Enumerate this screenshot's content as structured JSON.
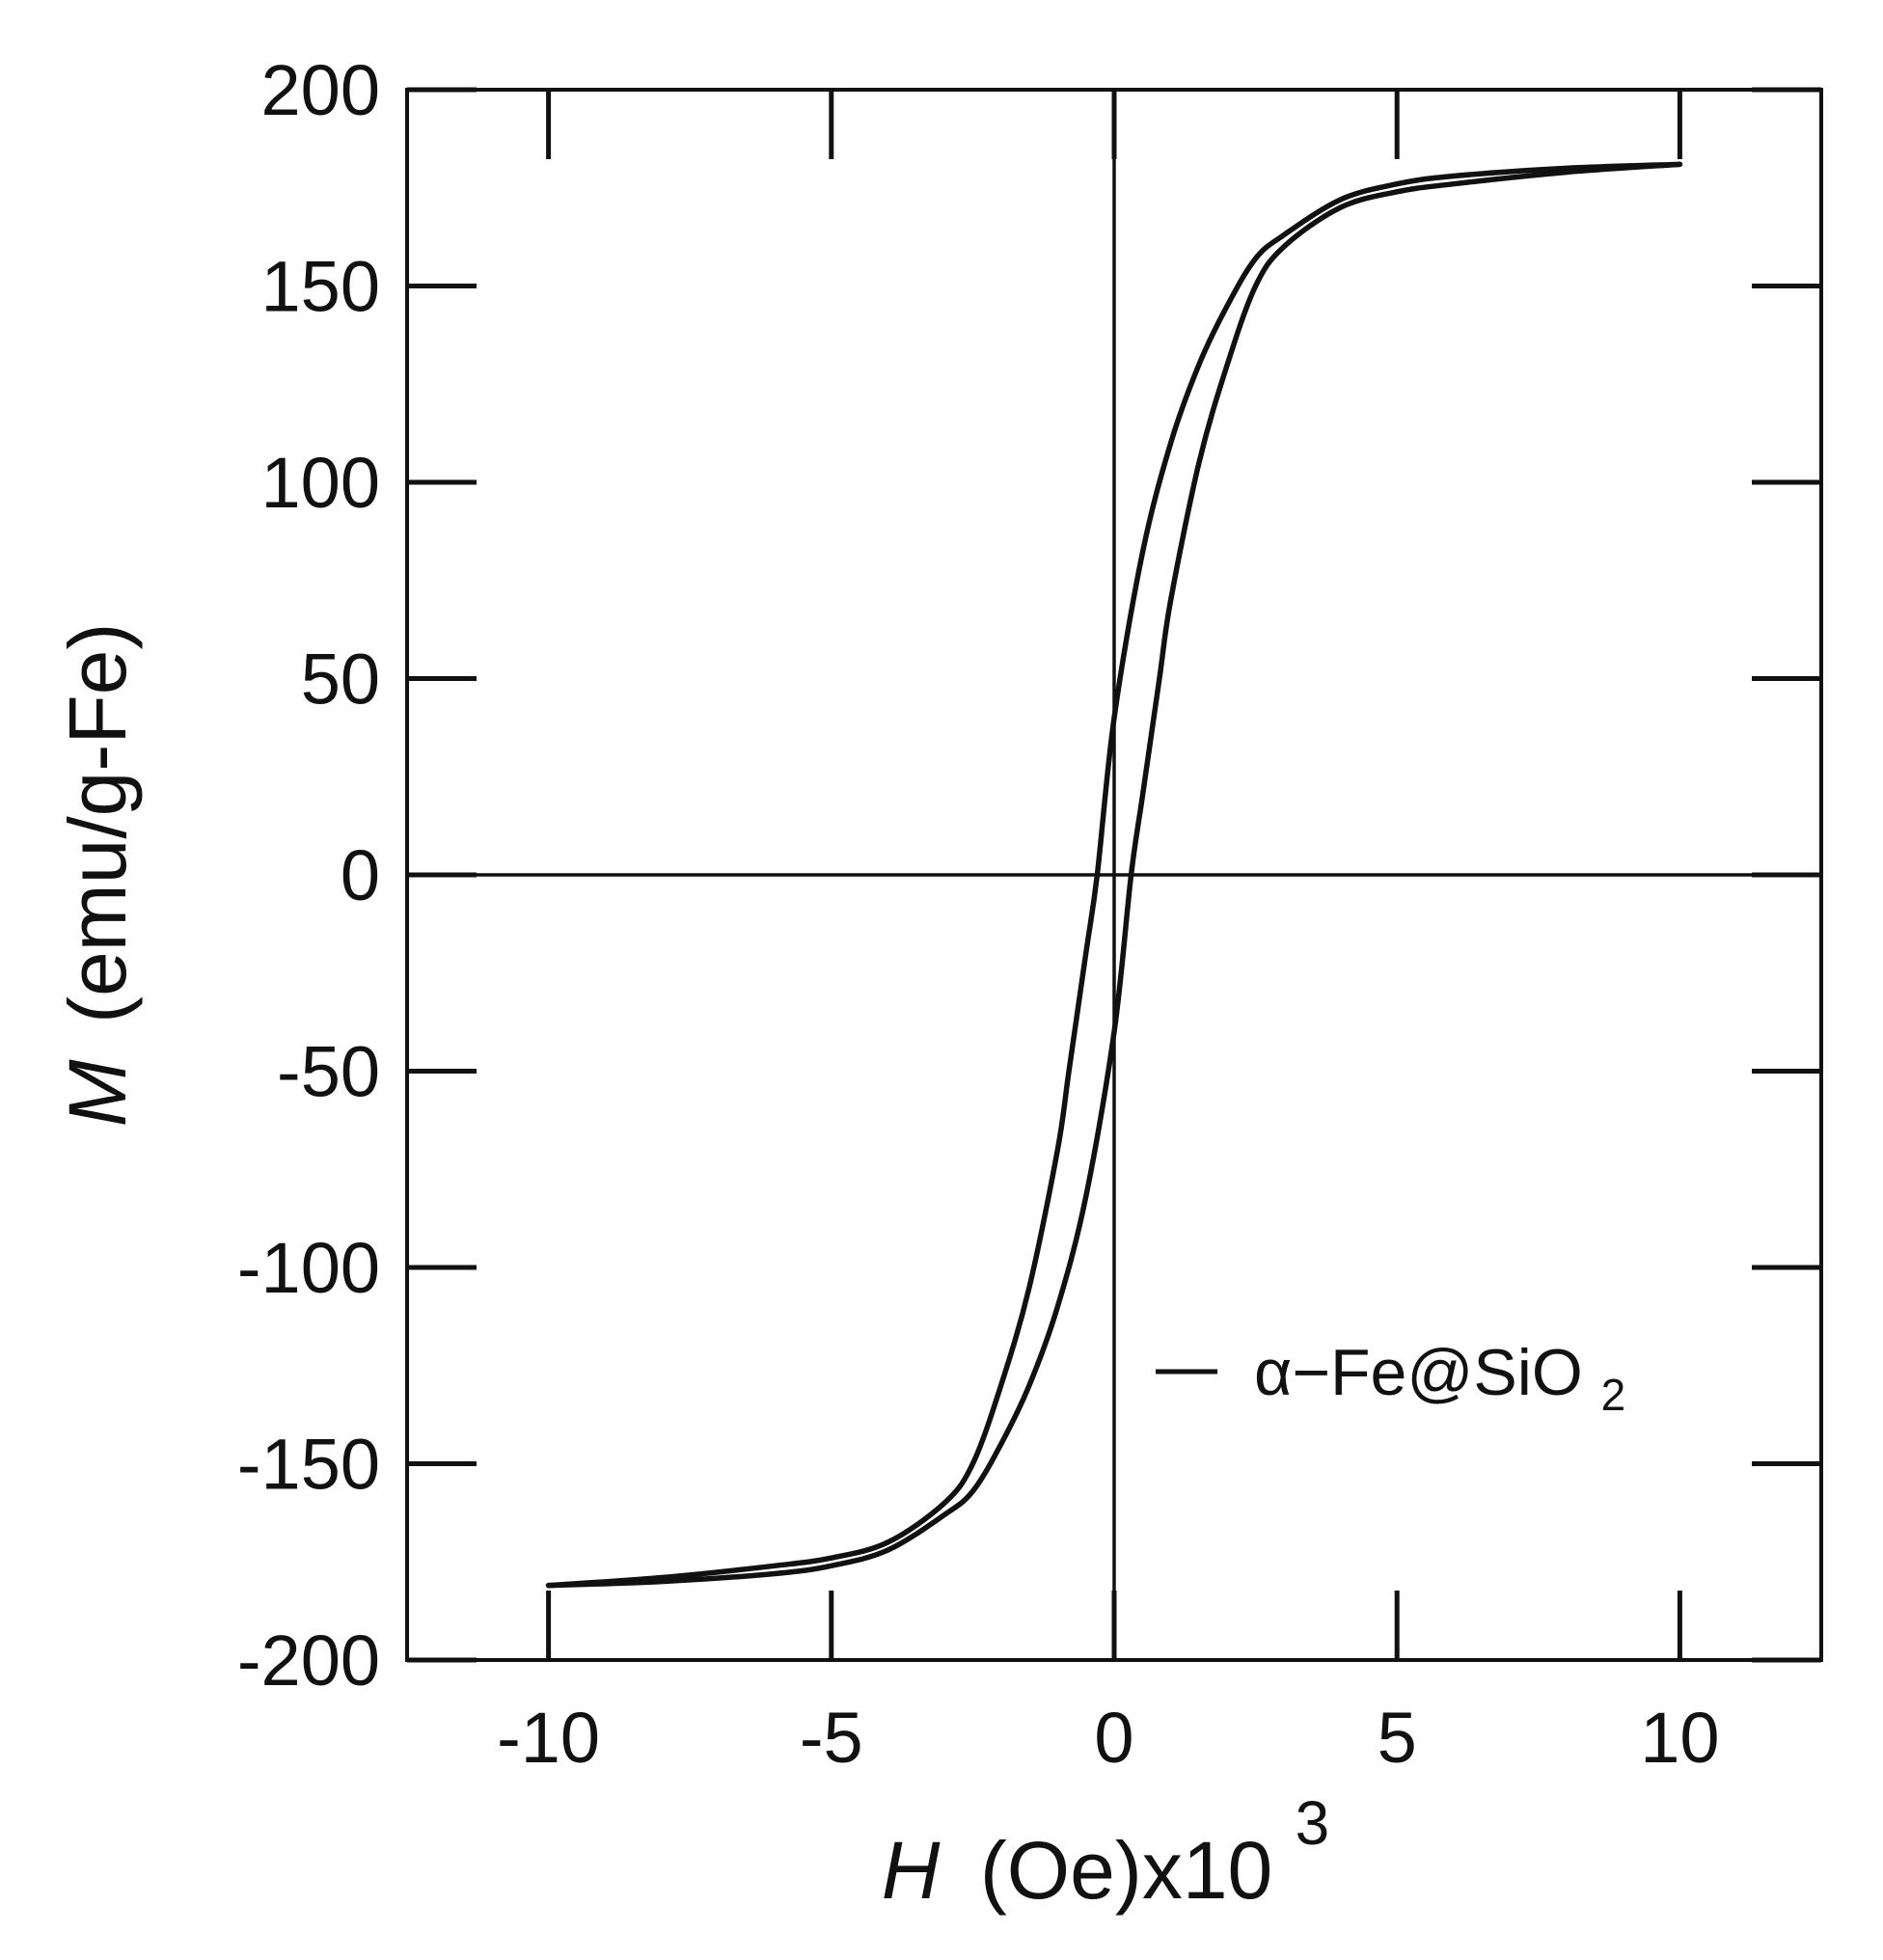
{
  "chart_data": {
    "type": "line",
    "title": "",
    "xlabel": {
      "symbol": "H",
      "unit": "(Oe)x10",
      "exponent": "3"
    },
    "ylabel": {
      "symbol": "M",
      "unit": "(emu/g-Fe)"
    },
    "xlim": [
      -12.5,
      12.5
    ],
    "ylim": [
      -200,
      200
    ],
    "xticks": [
      -10,
      -5,
      0,
      5,
      10
    ],
    "yticks": [
      200,
      150,
      100,
      50,
      0,
      -50,
      -100,
      -150,
      -200
    ],
    "grid": false,
    "zero_lines": true,
    "legend": {
      "placement": "bottom-right",
      "label": "α−Fe@SiO",
      "subscript": "2"
    },
    "series": [
      {
        "branch": "descending",
        "x": [
          10,
          8,
          6,
          5,
          4,
          3,
          2.5,
          2,
          1.5,
          1,
          0.5,
          0,
          -0.3,
          -0.5,
          -0.8,
          -1,
          -1.5,
          -2,
          -2.5,
          -3,
          -4,
          -5,
          -6,
          -8,
          -10
        ],
        "y": [
          181,
          180,
          178,
          176,
          172,
          163,
          157,
          145,
          130,
          110,
          82,
          40,
          0,
          -20,
          -50,
          -70,
          -105,
          -130,
          -150,
          -160,
          -170,
          -174,
          -176,
          -179,
          -181
        ]
      },
      {
        "branch": "ascending",
        "x": [
          -10,
          -8,
          -6,
          -5,
          -4,
          -3,
          -2.5,
          -2,
          -1.5,
          -1,
          -0.5,
          0,
          0.3,
          0.5,
          0.8,
          1,
          1.5,
          2,
          2.5,
          3,
          4,
          5,
          6,
          8,
          10
        ],
        "y": [
          -181,
          -180,
          -178,
          -176,
          -172,
          -163,
          -157,
          -145,
          -130,
          -110,
          -82,
          -40,
          0,
          20,
          50,
          70,
          105,
          130,
          150,
          160,
          170,
          174,
          176,
          179,
          181
        ]
      }
    ]
  }
}
